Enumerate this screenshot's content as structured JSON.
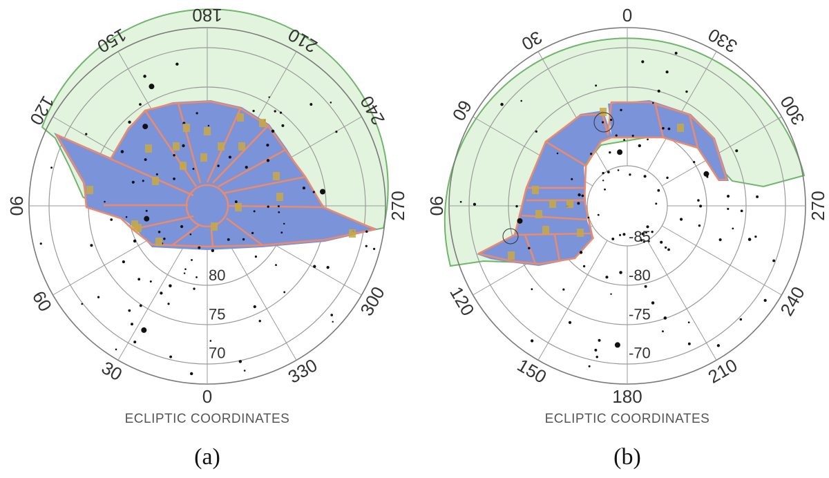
{
  "chart_data": [
    {
      "type": "scatter",
      "panel_label": "(a)",
      "caption": "ECLIPTIC COORDINATES",
      "projection": "polar",
      "hemisphere": "north",
      "azimuth_labels": [
        "180",
        "210",
        "240",
        "270",
        "300",
        "330",
        "0",
        "30",
        "60",
        "90",
        "120",
        "150"
      ],
      "azimuth_values": [
        180,
        210,
        240,
        270,
        300,
        330,
        0,
        30,
        60,
        90,
        120,
        150
      ],
      "latitude_labels": [
        "80",
        "75",
        "70"
      ],
      "latitude_values": [
        80,
        75,
        70
      ],
      "latitude_range": [
        67,
        90
      ],
      "regions": {
        "viewable": "green",
        "coverage": "blue",
        "tiles": "orange",
        "observations": "gold"
      },
      "bright_stars": [
        [
          142,
          77
        ],
        [
          155,
          73
        ],
        [
          263,
          75
        ],
        [
          27,
          72
        ],
        [
          78,
          82
        ]
      ]
    },
    {
      "type": "scatter",
      "panel_label": "(b)",
      "caption": "ECLIPTIC COORDINATES",
      "projection": "polar",
      "hemisphere": "south",
      "azimuth_labels": [
        "0",
        "330",
        "300",
        "270",
        "240",
        "210",
        "180",
        "150",
        "120",
        "90",
        "60",
        "30"
      ],
      "azimuth_values": [
        0,
        330,
        300,
        270,
        240,
        210,
        180,
        150,
        120,
        90,
        60,
        30
      ],
      "latitude_labels": [
        "-85",
        "-80",
        "-75",
        "-70"
      ],
      "latitude_values": [
        -85,
        -80,
        -75,
        -70
      ],
      "latitude_range": [
        -90,
        -67
      ],
      "regions": {
        "viewable": "green",
        "coverage": "blue",
        "tiles": "orange",
        "observations": "gold"
      },
      "bright_stars": [
        [
          8,
          -83
        ],
        [
          98,
          -76
        ],
        [
          292,
          -79
        ],
        [
          176,
          -72
        ]
      ]
    }
  ]
}
